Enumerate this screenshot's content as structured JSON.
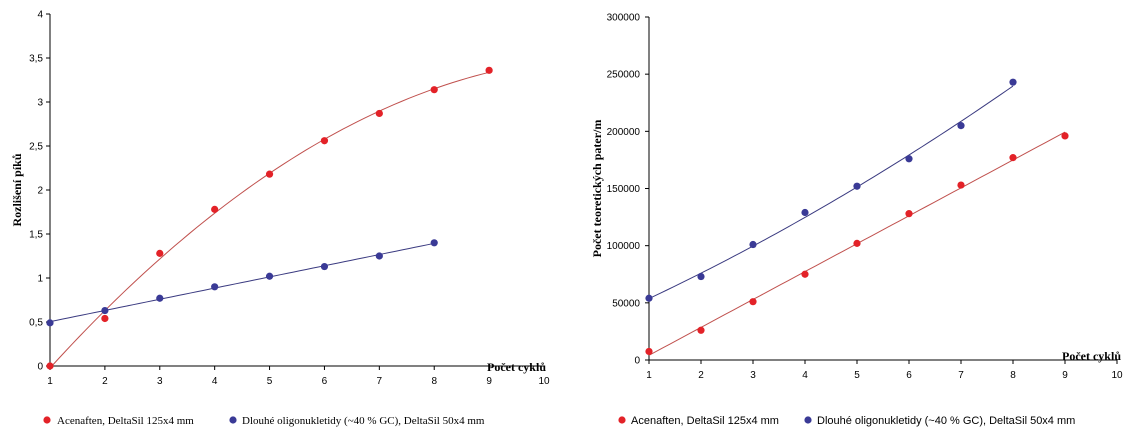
{
  "colors": {
    "series1": "#e32228",
    "series2": "#3a3a96",
    "line1": "#c0504d",
    "line2": "#3a3a80"
  },
  "chart_data": [
    {
      "type": "scatter",
      "title": "",
      "xlabel": "Počet cyklů",
      "ylabel": "Rozlišení píků",
      "xlim": [
        1,
        10
      ],
      "ylim": [
        0,
        4
      ],
      "xticks": [
        "1",
        "2",
        "3",
        "4",
        "5",
        "6",
        "7",
        "8",
        "9",
        "10"
      ],
      "yticks": [
        "0",
        "0,5",
        "1",
        "1,5",
        "2",
        "2,5",
        "3",
        "3,5",
        "4"
      ],
      "legend_position": "bottom",
      "series": [
        {
          "name": "Acenaften, DeltaSil 125x4 mm",
          "x": [
            1,
            2,
            3,
            4,
            5,
            6,
            7,
            8,
            9
          ],
          "y": [
            0.0,
            0.54,
            1.28,
            1.78,
            2.18,
            2.56,
            2.87,
            3.14,
            3.36
          ],
          "trendline": "polynomial"
        },
        {
          "name": "Dlouhé oligonukletidy (~40 % GC), DeltaSil 50x4 mm",
          "x": [
            1,
            2,
            3,
            4,
            5,
            6,
            7,
            8
          ],
          "y": [
            0.49,
            0.63,
            0.77,
            0.9,
            1.02,
            1.13,
            1.25,
            1.4
          ],
          "trendline": "linear"
        }
      ]
    },
    {
      "type": "scatter",
      "title": "",
      "xlabel": "Počet cyklů",
      "ylabel": "Počet teoretických pater/m",
      "xlim": [
        1,
        10
      ],
      "ylim": [
        0,
        300000
      ],
      "xticks": [
        "1",
        "2",
        "3",
        "4",
        "5",
        "6",
        "7",
        "8",
        "9",
        "10"
      ],
      "yticks": [
        "0",
        "50000",
        "100000",
        "150000",
        "200000",
        "250000",
        "300000"
      ],
      "legend_position": "bottom",
      "series": [
        {
          "name": "Acenaften, DeltaSil 125x4 mm",
          "x": [
            1,
            2,
            3,
            4,
            5,
            6,
            7,
            8,
            9
          ],
          "y": [
            7500,
            26000,
            51000,
            75000,
            102000,
            128000,
            153000,
            177000,
            196000
          ],
          "trendline": "linear"
        },
        {
          "name": "Dlouhé oligonukletidy (~40 % GC), DeltaSil 50x4 mm",
          "x": [
            1,
            2,
            3,
            4,
            5,
            6,
            7,
            8
          ],
          "y": [
            54000,
            73000,
            101000,
            129000,
            152000,
            176000,
            205000,
            243000
          ],
          "trendline": "polynomial"
        }
      ]
    }
  ]
}
